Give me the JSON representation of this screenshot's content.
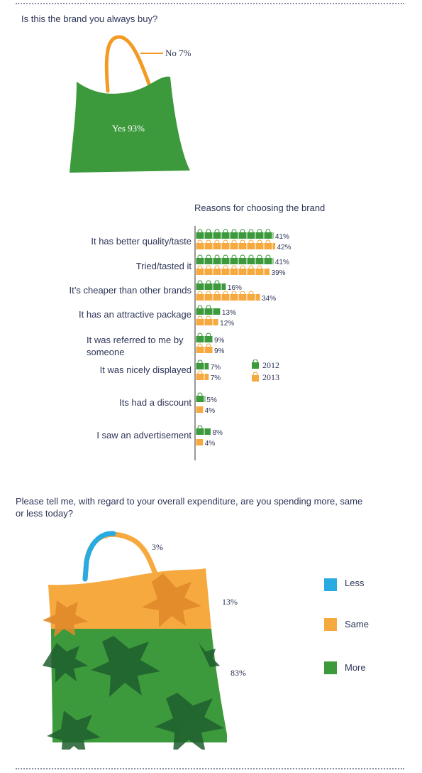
{
  "q1": {
    "question": "Is this the brand you always buy?",
    "no_label": "No 7%",
    "yes_label": "Yes 93%",
    "values": {
      "yes": 93,
      "no": 7
    }
  },
  "reasons_chart": {
    "title": "Reasons for choosing the brand",
    "legend": [
      "2012",
      "2013"
    ],
    "colors": {
      "2012": "#3c9a3c",
      "2013": "#f6a93f"
    }
  },
  "q2": {
    "question_line1": "Please tell me, with regard to your overall expenditure, are you spending more, same",
    "question_line2": "or less today?",
    "pct_less": "3%",
    "pct_same": "13%",
    "pct_more": "83%",
    "legend": [
      "Less",
      "Same",
      "More"
    ],
    "colors": {
      "less": "#29abe2",
      "same": "#f6a93f",
      "more": "#3c9a3c"
    }
  },
  "chart_data": [
    {
      "type": "pie",
      "title": "Is this the brand you always buy?",
      "categories": [
        "Yes",
        "No"
      ],
      "values": [
        93,
        7
      ]
    },
    {
      "type": "bar",
      "title": "Reasons for choosing the brand",
      "categories": [
        "It has better quality/taste",
        "Tried/tasted it",
        "It’s cheaper than other brands",
        "It has an attractive  package",
        "It was  referred to me by someone",
        "It was nicely displayed",
        "Its had a discount",
        "I saw an advertisement"
      ],
      "series": [
        {
          "name": "2012",
          "values": [
            41,
            41,
            16,
            13,
            9,
            7,
            5,
            8
          ],
          "labels": [
            "41%",
            "41%",
            "16%",
            "13%",
            "9%",
            "7%",
            "5%",
            "8%"
          ]
        },
        {
          "name": "2013",
          "values": [
            42,
            39,
            34,
            12,
            9,
            7,
            4,
            4
          ],
          "labels": [
            "42%",
            "39%",
            "34%",
            "12%",
            "9%",
            "7%",
            "4%",
            "4%"
          ]
        }
      ]
    },
    {
      "type": "pie",
      "title": "Please tell me, with regard to your overall expenditure, are you spending more, same or less today?",
      "categories": [
        "Less",
        "Same",
        "More"
      ],
      "values": [
        3,
        13,
        83
      ]
    }
  ]
}
